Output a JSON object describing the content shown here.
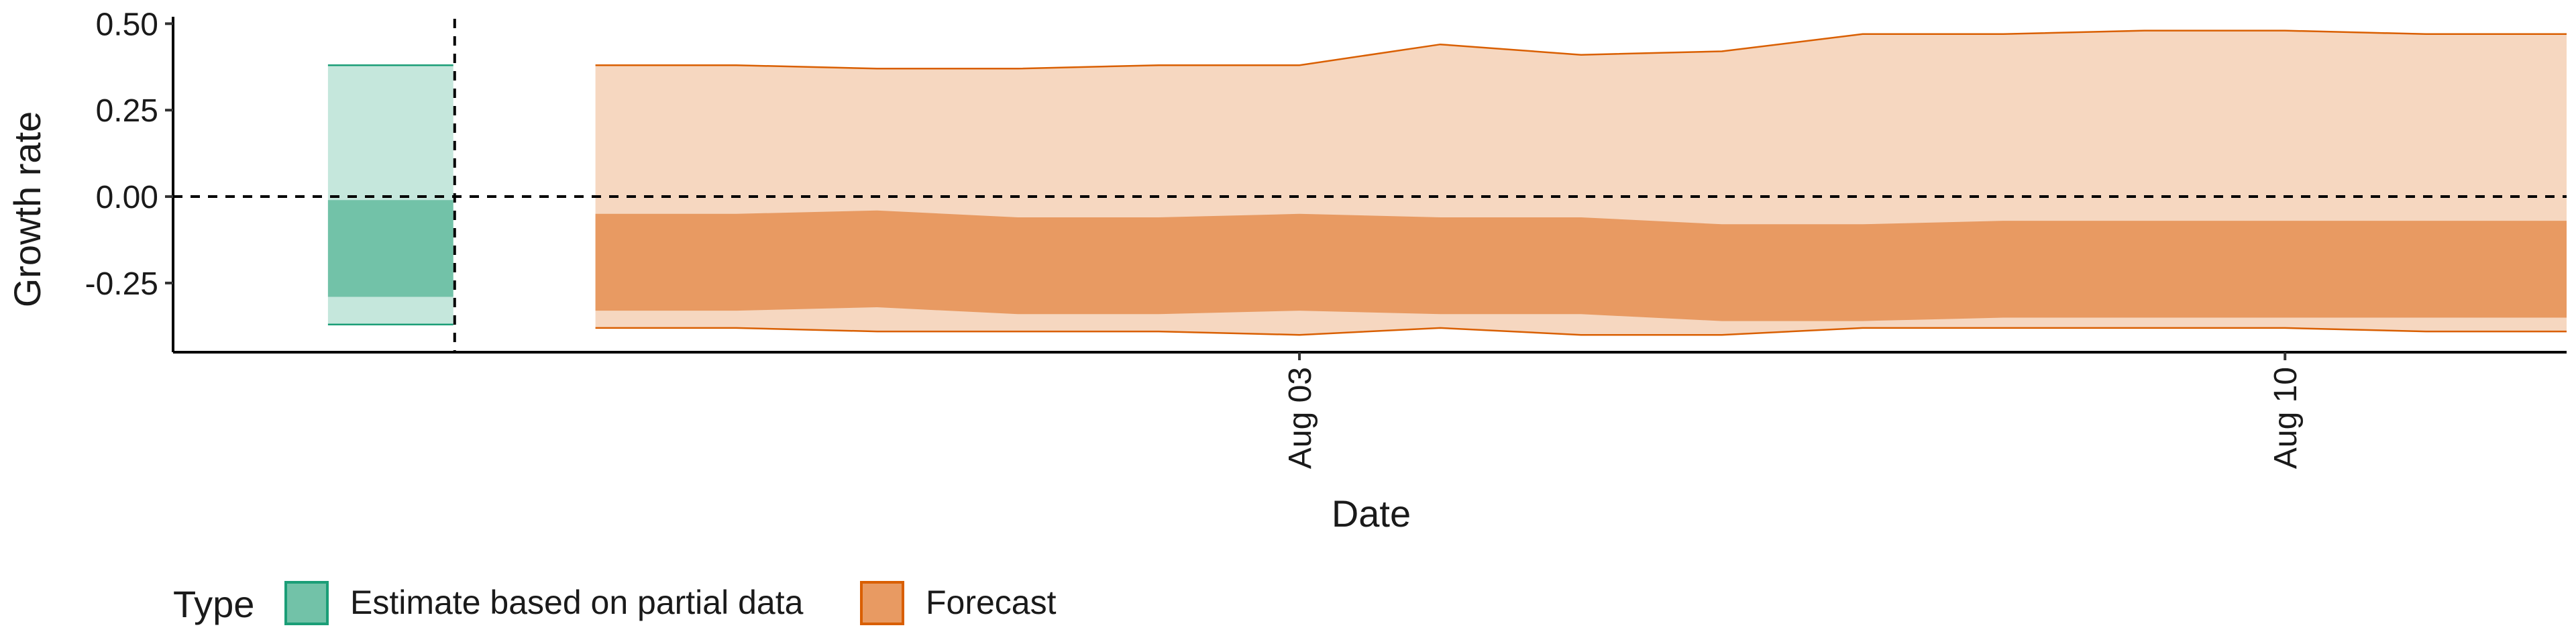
{
  "chart_data": {
    "type": "area",
    "xlabel": "Date",
    "ylabel": "Growth rate",
    "x_ticks": [
      {
        "date": "2020-08-03",
        "label": "Aug 03"
      },
      {
        "date": "2020-08-10",
        "label": "Aug 10"
      }
    ],
    "y_ticks": [
      -0.25,
      0.0,
      0.25,
      0.5
    ],
    "y_tick_labels": [
      "-0.25",
      "0.00",
      "0.25",
      "0.50"
    ],
    "xlim": [
      "2020-07-26",
      "2020-08-12"
    ],
    "ylim": [
      -0.45,
      0.52
    ],
    "reference_lines": {
      "horizontal_y": 0.0,
      "vertical_date": "2020-07-28"
    },
    "grid": false,
    "legend": {
      "title": "Type",
      "placement": "bottom",
      "entries": [
        {
          "label": "Estimate based on partial data",
          "fill": "#72c2a8",
          "border": "#1b9e77"
        },
        {
          "label": "Forecast",
          "fill": "#e89a62",
          "border": "#d95f02"
        }
      ]
    },
    "series": [
      {
        "type_label": "Estimate based on partial data",
        "fill_outer": "#c5e7dc",
        "fill_inner": "#72c2a8",
        "line": "#1b9e77",
        "x": [
          "2020-07-27",
          "2020-07-28"
        ],
        "outer_upper": [
          0.38,
          0.38
        ],
        "outer_lower": [
          -0.37,
          -0.37
        ],
        "inner_upper": [
          -0.01,
          -0.01
        ],
        "inner_lower": [
          -0.29,
          -0.29
        ]
      },
      {
        "type_label": "Forecast",
        "fill_outer": "#f6d7c0",
        "fill_inner": "#e89a62",
        "line": "#d95f02",
        "x": [
          "2020-07-29",
          "2020-07-30",
          "2020-07-31",
          "2020-08-01",
          "2020-08-02",
          "2020-08-03",
          "2020-08-04",
          "2020-08-05",
          "2020-08-06",
          "2020-08-07",
          "2020-08-08",
          "2020-08-09",
          "2020-08-10",
          "2020-08-11",
          "2020-08-12"
        ],
        "outer_upper": [
          0.38,
          0.38,
          0.37,
          0.37,
          0.38,
          0.38,
          0.44,
          0.41,
          0.42,
          0.47,
          0.47,
          0.48,
          0.48,
          0.47,
          0.47
        ],
        "outer_lower": [
          -0.38,
          -0.38,
          -0.39,
          -0.39,
          -0.39,
          -0.4,
          -0.38,
          -0.4,
          -0.4,
          -0.38,
          -0.38,
          -0.38,
          -0.38,
          -0.39,
          -0.39
        ],
        "inner_upper": [
          -0.05,
          -0.05,
          -0.04,
          -0.06,
          -0.06,
          -0.05,
          -0.06,
          -0.06,
          -0.08,
          -0.08,
          -0.07,
          -0.07,
          -0.07,
          -0.07,
          -0.07
        ],
        "inner_lower": [
          -0.33,
          -0.33,
          -0.32,
          -0.34,
          -0.34,
          -0.33,
          -0.34,
          -0.34,
          -0.36,
          -0.36,
          -0.35,
          -0.35,
          -0.35,
          -0.35,
          -0.35
        ]
      }
    ]
  }
}
